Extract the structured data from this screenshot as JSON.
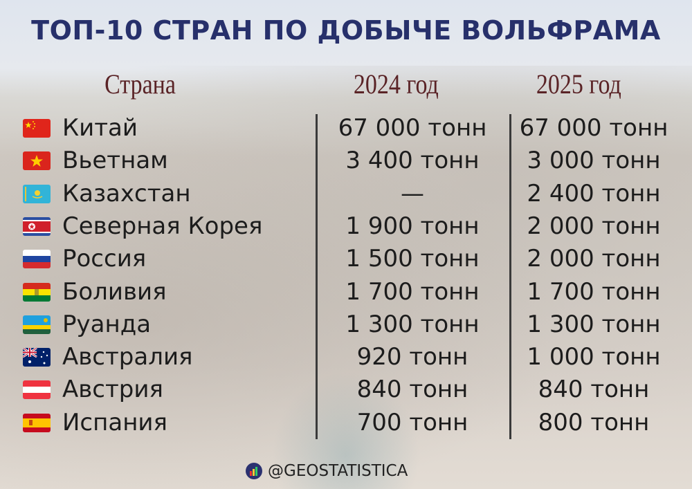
{
  "title": "ТОП-10 СТРАН ПО ДОБЫЧЕ ВОЛЬФРАМА",
  "headers": {
    "country": "Страна",
    "y2024": "2024 год",
    "y2025": "2025 год"
  },
  "rows": [
    {
      "flag": "china-flag",
      "country": "Китай",
      "y2024": "67 000 тонн",
      "y2025": "67 000 тонн"
    },
    {
      "flag": "vietnam-flag",
      "country": "Вьетнам",
      "y2024": "3 400 тонн",
      "y2025": "3 000 тонн"
    },
    {
      "flag": "kazakhstan-flag",
      "country": "Казахстан",
      "y2024": "—",
      "y2025": "2 400 тонн"
    },
    {
      "flag": "north-korea-flag",
      "country": "Северная Корея",
      "y2024": "1 900 тонн",
      "y2025": "2 000 тонн"
    },
    {
      "flag": "russia-flag",
      "country": "Россия",
      "y2024": "1 500 тонн",
      "y2025": "2 000 тонн"
    },
    {
      "flag": "bolivia-flag",
      "country": "Боливия",
      "y2024": "1 700 тонн",
      "y2025": "1 700 тонн"
    },
    {
      "flag": "rwanda-flag",
      "country": "Руанда",
      "y2024": "1 300 тонн",
      "y2025": "1 300 тонн"
    },
    {
      "flag": "australia-flag",
      "country": "Австралия",
      "y2024": "920 тонн",
      "y2025": "1 000 тонн"
    },
    {
      "flag": "austria-flag",
      "country": "Австрия",
      "y2024": "840 тонн",
      "y2025": "840 тонн"
    },
    {
      "flag": "spain-flag",
      "country": "Испания",
      "y2024": "700 тонн",
      "y2025": "800 тонн"
    }
  ],
  "footer": {
    "handle": "@GEOSTATISTICA"
  },
  "colors": {
    "title": "#27306b",
    "headers": "#5a2326"
  },
  "chart_data": {
    "type": "table",
    "title": "ТОП-10 СТРАН ПО ДОБЫЧЕ ВОЛЬФРАМА",
    "columns": [
      "Страна",
      "2024 год",
      "2025 год"
    ],
    "categories": [
      "Китай",
      "Вьетнам",
      "Казахстан",
      "Северная Корея",
      "Россия",
      "Боливия",
      "Руанда",
      "Австралия",
      "Австрия",
      "Испания"
    ],
    "series": [
      {
        "name": "2024 год",
        "values": [
          67000,
          3400,
          null,
          1900,
          1500,
          1700,
          1300,
          920,
          840,
          700
        ]
      },
      {
        "name": "2025 год",
        "values": [
          67000,
          3000,
          2400,
          2000,
          2000,
          1700,
          1300,
          1000,
          840,
          800
        ]
      }
    ]
  }
}
